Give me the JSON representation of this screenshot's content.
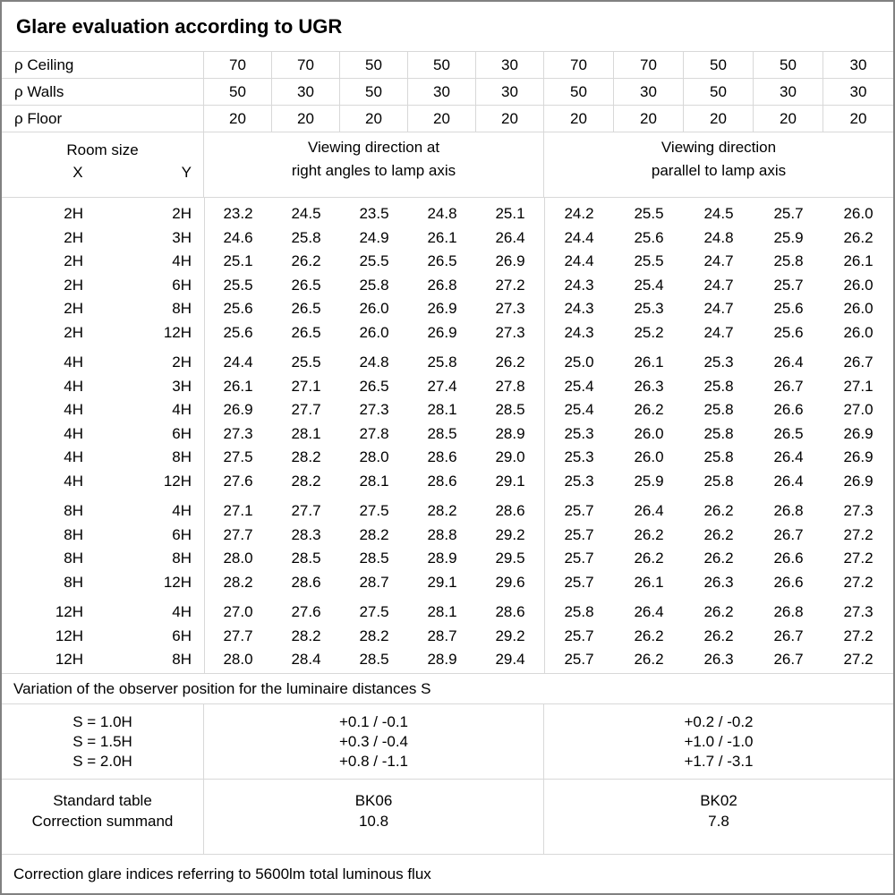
{
  "title": "Glare evaluation according to UGR",
  "colors": {
    "grid_line": "#d8d8d8",
    "outer_border": "#818181",
    "text": "#000000",
    "background": "#ffffff"
  },
  "reflectances": {
    "rows": [
      {
        "label": "ρ Ceiling",
        "values": [
          "70",
          "70",
          "50",
          "50",
          "30",
          "70",
          "70",
          "50",
          "50",
          "30"
        ]
      },
      {
        "label": "ρ Walls",
        "values": [
          "50",
          "30",
          "50",
          "30",
          "30",
          "50",
          "30",
          "50",
          "30",
          "30"
        ]
      },
      {
        "label": "ρ Floor",
        "values": [
          "20",
          "20",
          "20",
          "20",
          "20",
          "20",
          "20",
          "20",
          "20",
          "20"
        ]
      }
    ]
  },
  "header": {
    "room_size_label": "Room size",
    "x_label": "X",
    "y_label": "Y",
    "viewing_left_line1": "Viewing direction at",
    "viewing_left_line2": "right angles to lamp axis",
    "viewing_right_line1": "Viewing direction",
    "viewing_right_line2": "parallel to lamp axis"
  },
  "ugr_table": {
    "sections": [
      {
        "rows": [
          {
            "x": "2H",
            "y": "2H",
            "right_angles": [
              "23.2",
              "24.5",
              "23.5",
              "24.8",
              "25.1"
            ],
            "parallel": [
              "24.2",
              "25.5",
              "24.5",
              "25.7",
              "26.0"
            ]
          },
          {
            "x": "2H",
            "y": "3H",
            "right_angles": [
              "24.6",
              "25.8",
              "24.9",
              "26.1",
              "26.4"
            ],
            "parallel": [
              "24.4",
              "25.6",
              "24.8",
              "25.9",
              "26.2"
            ]
          },
          {
            "x": "2H",
            "y": "4H",
            "right_angles": [
              "25.1",
              "26.2",
              "25.5",
              "26.5",
              "26.9"
            ],
            "parallel": [
              "24.4",
              "25.5",
              "24.7",
              "25.8",
              "26.1"
            ]
          },
          {
            "x": "2H",
            "y": "6H",
            "right_angles": [
              "25.5",
              "26.5",
              "25.8",
              "26.8",
              "27.2"
            ],
            "parallel": [
              "24.3",
              "25.4",
              "24.7",
              "25.7",
              "26.0"
            ]
          },
          {
            "x": "2H",
            "y": "8H",
            "right_angles": [
              "25.6",
              "26.5",
              "26.0",
              "26.9",
              "27.3"
            ],
            "parallel": [
              "24.3",
              "25.3",
              "24.7",
              "25.6",
              "26.0"
            ]
          },
          {
            "x": "2H",
            "y": "12H",
            "right_angles": [
              "25.6",
              "26.5",
              "26.0",
              "26.9",
              "27.3"
            ],
            "parallel": [
              "24.3",
              "25.2",
              "24.7",
              "25.6",
              "26.0"
            ]
          }
        ]
      },
      {
        "rows": [
          {
            "x": "4H",
            "y": "2H",
            "right_angles": [
              "24.4",
              "25.5",
              "24.8",
              "25.8",
              "26.2"
            ],
            "parallel": [
              "25.0",
              "26.1",
              "25.3",
              "26.4",
              "26.7"
            ]
          },
          {
            "x": "4H",
            "y": "3H",
            "right_angles": [
              "26.1",
              "27.1",
              "26.5",
              "27.4",
              "27.8"
            ],
            "parallel": [
              "25.4",
              "26.3",
              "25.8",
              "26.7",
              "27.1"
            ]
          },
          {
            "x": "4H",
            "y": "4H",
            "right_angles": [
              "26.9",
              "27.7",
              "27.3",
              "28.1",
              "28.5"
            ],
            "parallel": [
              "25.4",
              "26.2",
              "25.8",
              "26.6",
              "27.0"
            ]
          },
          {
            "x": "4H",
            "y": "6H",
            "right_angles": [
              "27.3",
              "28.1",
              "27.8",
              "28.5",
              "28.9"
            ],
            "parallel": [
              "25.3",
              "26.0",
              "25.8",
              "26.5",
              "26.9"
            ]
          },
          {
            "x": "4H",
            "y": "8H",
            "right_angles": [
              "27.5",
              "28.2",
              "28.0",
              "28.6",
              "29.0"
            ],
            "parallel": [
              "25.3",
              "26.0",
              "25.8",
              "26.4",
              "26.9"
            ]
          },
          {
            "x": "4H",
            "y": "12H",
            "right_angles": [
              "27.6",
              "28.2",
              "28.1",
              "28.6",
              "29.1"
            ],
            "parallel": [
              "25.3",
              "25.9",
              "25.8",
              "26.4",
              "26.9"
            ]
          }
        ]
      },
      {
        "rows": [
          {
            "x": "8H",
            "y": "4H",
            "right_angles": [
              "27.1",
              "27.7",
              "27.5",
              "28.2",
              "28.6"
            ],
            "parallel": [
              "25.7",
              "26.4",
              "26.2",
              "26.8",
              "27.3"
            ]
          },
          {
            "x": "8H",
            "y": "6H",
            "right_angles": [
              "27.7",
              "28.3",
              "28.2",
              "28.8",
              "29.2"
            ],
            "parallel": [
              "25.7",
              "26.2",
              "26.2",
              "26.7",
              "27.2"
            ]
          },
          {
            "x": "8H",
            "y": "8H",
            "right_angles": [
              "28.0",
              "28.5",
              "28.5",
              "28.9",
              "29.5"
            ],
            "parallel": [
              "25.7",
              "26.2",
              "26.2",
              "26.6",
              "27.2"
            ]
          },
          {
            "x": "8H",
            "y": "12H",
            "right_angles": [
              "28.2",
              "28.6",
              "28.7",
              "29.1",
              "29.6"
            ],
            "parallel": [
              "25.7",
              "26.1",
              "26.3",
              "26.6",
              "27.2"
            ]
          }
        ]
      },
      {
        "rows": [
          {
            "x": "12H",
            "y": "4H",
            "right_angles": [
              "27.0",
              "27.6",
              "27.5",
              "28.1",
              "28.6"
            ],
            "parallel": [
              "25.8",
              "26.4",
              "26.2",
              "26.8",
              "27.3"
            ]
          },
          {
            "x": "12H",
            "y": "6H",
            "right_angles": [
              "27.7",
              "28.2",
              "28.2",
              "28.7",
              "29.2"
            ],
            "parallel": [
              "25.7",
              "26.2",
              "26.2",
              "26.7",
              "27.2"
            ]
          },
          {
            "x": "12H",
            "y": "8H",
            "right_angles": [
              "28.0",
              "28.4",
              "28.5",
              "28.9",
              "29.4"
            ],
            "parallel": [
              "25.7",
              "26.2",
              "26.3",
              "26.7",
              "27.2"
            ]
          }
        ]
      }
    ]
  },
  "variation_note": "Variation of the observer position for the luminaire distances S",
  "variation_table": {
    "rows": [
      {
        "label": "S = 1.0H",
        "right_angles": "+0.1 / -0.1",
        "parallel": "+0.2 / -0.2"
      },
      {
        "label": "S = 1.5H",
        "right_angles": "+0.3 / -0.4",
        "parallel": "+1.0 / -1.0"
      },
      {
        "label": "S = 2.0H",
        "right_angles": "+0.8 / -1.1",
        "parallel": "+1.7 / -3.1"
      }
    ]
  },
  "standard_table": {
    "label": "Standard table",
    "right_angles": "BK06",
    "parallel": "BK02"
  },
  "correction_summand": {
    "label": "Correction summand",
    "right_angles": "10.8",
    "parallel": "7.8"
  },
  "footer_note": "Correction glare indices referring to 5600lm total luminous flux"
}
